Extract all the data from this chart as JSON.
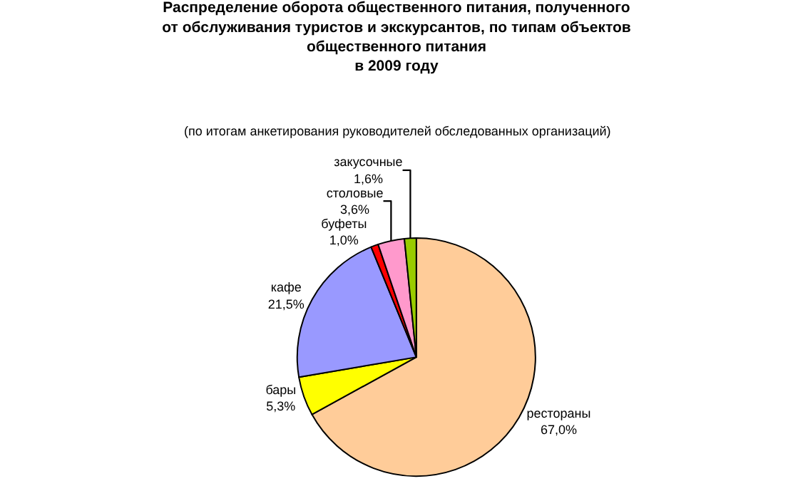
{
  "chart_data": {
    "type": "pie",
    "title": "Распределение оборота общественного питания, полученного\nот обслуживания туристов и экскурсантов, по типам объектов\nобщественного питания\nв 2009 году",
    "subtitle": "(по итогам анкетирования руководителей обследованных организаций)",
    "categories": [
      "рестораны",
      "бары",
      "кафе",
      "буфеты",
      "столовые",
      "закусочные"
    ],
    "values": [
      67.0,
      5.3,
      21.5,
      1.0,
      3.6,
      1.6
    ],
    "value_labels": [
      "67,0%",
      "5,3%",
      "21,5%",
      "1,0%",
      "3,6%",
      "1,6%"
    ],
    "colors": [
      "#ffcc99",
      "#ffff00",
      "#9999ff",
      "#ff0000",
      "#ff99cc",
      "#99cc00"
    ],
    "legend": false
  }
}
